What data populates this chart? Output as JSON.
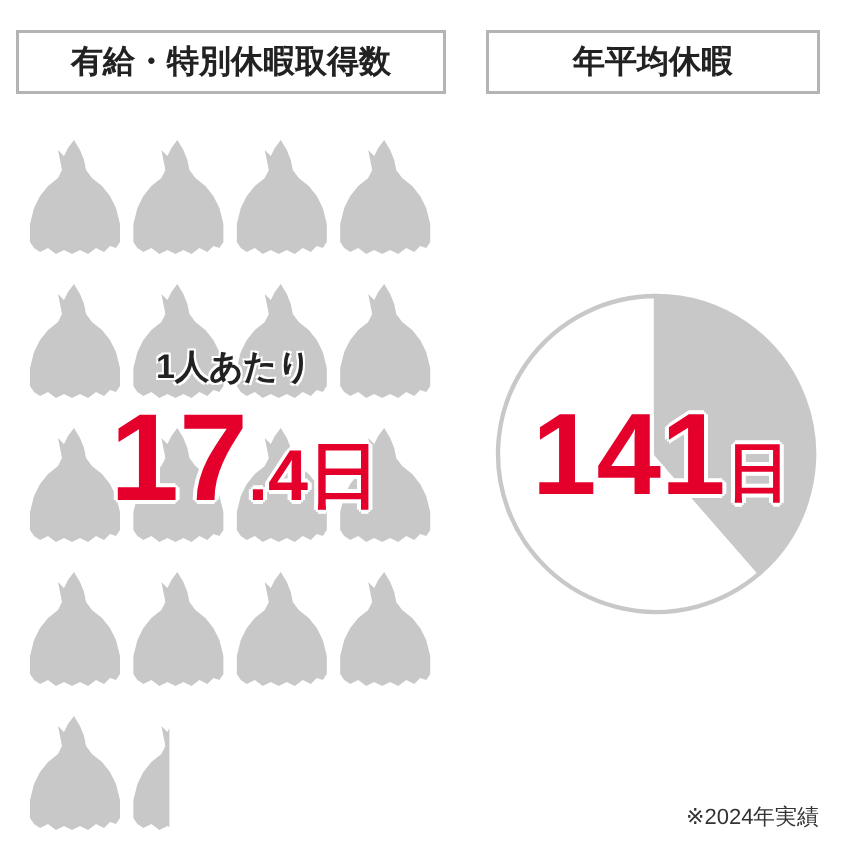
{
  "chart_data": [
    {
      "type": "other",
      "title": "有給・特別休暇取得数",
      "values": [
        17.4
      ],
      "value_labels": [
        "17.4日"
      ],
      "color": "#c8c8c8",
      "annotations": [
        "1人あたり"
      ]
    },
    {
      "type": "pie",
      "title": "年平均休暇",
      "categories": [
        null,
        null
      ],
      "values": [
        38.6,
        61.4
      ],
      "colors": [
        "#c8c8c8",
        "#ffffff"
      ],
      "annotations": [
        "141日",
        "※2024年実績"
      ]
    }
  ]
}
